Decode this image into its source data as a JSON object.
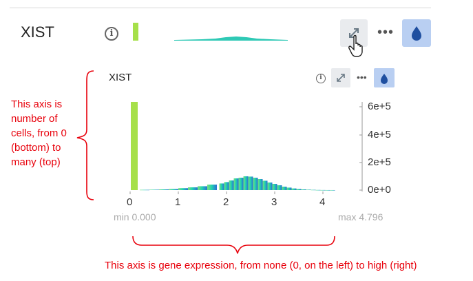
{
  "gene_row": {
    "name": "XIST",
    "info_icon": "info-icon",
    "expand_icon": "expand-arrows-icon",
    "more_icon": "more-dots-icon",
    "more_label": "•••",
    "color_icon": "droplet-icon",
    "cursor_icon": "hand-pointer-icon"
  },
  "histogram_panel": {
    "name": "XIST",
    "more_label": "•••",
    "min_label": "min 0.000",
    "max_label": "max 4.796"
  },
  "annotations": {
    "y_axis_note": [
      "This axis is",
      "number of",
      "cells, from 0",
      "(bottom) to",
      "many (top)"
    ],
    "x_axis_note": "This axis is gene expression, from none (0, on the left) to high (right)"
  },
  "colors": {
    "accent_blue": "#b9cff2",
    "droplet": "#1f4fa0",
    "bar_green": "#a6e04a",
    "annotation_red": "#e8000b"
  },
  "chart_data": {
    "type": "bar",
    "x": [
      0.1,
      0.3,
      0.5,
      0.7,
      0.9,
      1.1,
      1.3,
      1.5,
      1.7,
      1.9,
      2.0,
      2.1,
      2.2,
      2.3,
      2.4,
      2.5,
      2.6,
      2.7,
      2.8,
      2.9,
      3.0,
      3.1,
      3.2,
      3.3,
      3.4,
      3.5,
      3.6,
      3.7,
      3.8,
      3.9,
      4.0,
      4.1,
      4.2
    ],
    "values": [
      640000,
      2000,
      3000,
      5000,
      8000,
      14000,
      20000,
      28000,
      40000,
      48000,
      58000,
      70000,
      85000,
      90000,
      100000,
      98000,
      90000,
      80000,
      68000,
      55000,
      45000,
      35000,
      25000,
      18000,
      12000,
      8000,
      5000,
      3000,
      2000,
      1000,
      500,
      200,
      100
    ],
    "xticks": [
      "0",
      "1",
      "2",
      "3",
      "4"
    ],
    "yticks": [
      "0e+0",
      "2e+5",
      "4e+5",
      "6e+5"
    ],
    "xlim": [
      0,
      4.796
    ],
    "ylim": [
      0,
      640000
    ],
    "xlabel": "",
    "ylabel": ""
  }
}
